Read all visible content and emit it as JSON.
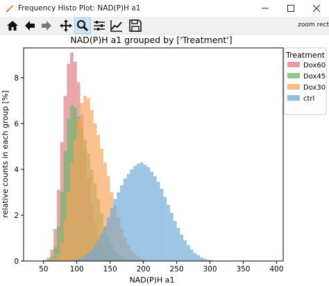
{
  "window": {
    "title": "Frequency Histo Plot: NAD(P)H a1",
    "minimize_icon": "minimize-icon",
    "maximize_icon": "maximize-icon",
    "close_icon": "close-icon"
  },
  "toolbar": {
    "buttons": [
      "home-icon",
      "back-arrow-icon",
      "forward-arrow-icon",
      "pan-icon",
      "zoom-magnifier-icon",
      "subplots-config-icon",
      "edit-axes-icon",
      "save-icon"
    ],
    "active": "zoom-magnifier-icon",
    "message": "zoom rect"
  },
  "chart_data": {
    "type": "histogram",
    "title": "NAD(P)H a1 grouped by ['Treatment']",
    "xlabel": "NAD(P)H a1",
    "ylabel": "relative counts in each group [%]",
    "xlim": [
      20,
      410
    ],
    "ylim": [
      0,
      9.3
    ],
    "xticks": [
      "50",
      "100",
      "150",
      "200",
      "250",
      "300",
      "350",
      "400"
    ],
    "yticks": [
      "0",
      "2",
      "4",
      "6",
      "8"
    ],
    "bin_start": 30,
    "bin_width": 5,
    "legend": {
      "title": "Treatment",
      "placement": "outside-right"
    },
    "series": [
      {
        "name": "Dox60",
        "color": "#e07b80",
        "values": [
          0,
          0,
          0,
          0,
          0.05,
          0.15,
          0.5,
          1.4,
          3.1,
          5.2,
          7.2,
          8.6,
          9.1,
          8.7,
          7.8,
          6.4,
          4.9,
          3.6,
          2.5,
          1.7,
          1.1,
          0.7,
          0.4,
          0.25,
          0.15,
          0.1,
          0.05,
          0,
          0,
          0,
          0,
          0,
          0,
          0,
          0,
          0,
          0,
          0,
          0,
          0,
          0,
          0,
          0,
          0,
          0,
          0,
          0,
          0,
          0,
          0,
          0,
          0,
          0,
          0,
          0,
          0,
          0,
          0,
          0,
          0,
          0,
          0,
          0,
          0,
          0,
          0,
          0,
          0,
          0,
          0,
          0,
          0,
          0,
          0,
          0,
          0,
          0,
          0
        ]
      },
      {
        "name": "Dox45",
        "color": "#6ab56a",
        "values": [
          0,
          0,
          0,
          0,
          0,
          0.05,
          0.2,
          0.6,
          1.5,
          3.0,
          4.8,
          6.2,
          6.8,
          6.7,
          6.3,
          5.8,
          5.3,
          4.7,
          4.0,
          3.4,
          2.7,
          2.1,
          1.5,
          1.05,
          0.7,
          0.45,
          0.3,
          0.18,
          0.1,
          0.05,
          0,
          0,
          0,
          0,
          0,
          0,
          0,
          0,
          0,
          0,
          0,
          0,
          0,
          0,
          0,
          0,
          0,
          0,
          0,
          0,
          0,
          0,
          0,
          0,
          0,
          0,
          0,
          0,
          0,
          0,
          0,
          0,
          0,
          0,
          0,
          0,
          0,
          0,
          0,
          0,
          0,
          0,
          0,
          0,
          0,
          0,
          0
        ]
      },
      {
        "name": "Dox30",
        "color": "#f7a45a",
        "values": [
          0,
          0,
          0,
          0,
          0,
          0,
          0,
          0.1,
          0.3,
          0.8,
          1.8,
          3.0,
          4.3,
          5.3,
          6.2,
          6.9,
          7.2,
          7.1,
          6.6,
          6.0,
          5.5,
          4.9,
          4.3,
          3.7,
          3.0,
          2.4,
          1.9,
          1.4,
          1.0,
          0.7,
          0.45,
          0.3,
          0.2,
          0.1,
          0.05,
          0,
          0,
          0,
          0,
          0,
          0,
          0,
          0,
          0,
          0,
          0,
          0,
          0,
          0,
          0,
          0,
          0,
          0,
          0,
          0,
          0,
          0,
          0,
          0,
          0,
          0,
          0,
          0,
          0,
          0,
          0,
          0,
          0,
          0,
          0,
          0,
          0,
          0,
          0,
          0,
          0,
          0
        ]
      },
      {
        "name": "ctrl",
        "color": "#6fa8d6",
        "values": [
          0,
          0,
          0,
          0,
          0,
          0,
          0,
          0,
          0,
          0,
          0,
          0,
          0,
          0.05,
          0.1,
          0.15,
          0.25,
          0.35,
          0.5,
          0.7,
          0.9,
          1.2,
          1.5,
          1.9,
          2.3,
          2.7,
          3.0,
          3.3,
          3.6,
          3.8,
          4.0,
          4.15,
          4.25,
          4.3,
          4.2,
          4.1,
          3.9,
          3.7,
          3.45,
          3.15,
          2.8,
          2.45,
          2.1,
          1.75,
          1.45,
          1.15,
          0.9,
          0.7,
          0.5,
          0.35,
          0.25,
          0.15,
          0.1,
          0.05,
          0.03,
          0,
          0,
          0,
          0,
          0,
          0,
          0,
          0,
          0,
          0,
          0,
          0,
          0,
          0,
          0,
          0,
          0,
          0,
          0,
          0,
          0,
          0
        ]
      }
    ]
  }
}
